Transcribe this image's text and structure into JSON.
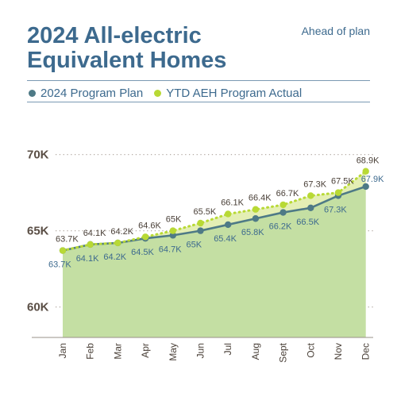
{
  "title": "2024 All-electric Equivalent Homes",
  "status": "Ahead of plan",
  "colors": {
    "plan": "#4e7a86",
    "actual": "#b8d935",
    "fill": "#c4dfa3",
    "ahead_fill": "#e4efb4",
    "text": "#3d6a8e"
  },
  "legend": [
    {
      "label": "2024 Program Plan",
      "color": "#4e7a86"
    },
    {
      "label": "YTD AEH Program Actual",
      "color": "#b8d935"
    }
  ],
  "chart_data": {
    "type": "line",
    "categories": [
      "Jan",
      "Feb",
      "Mar",
      "Apr",
      "May",
      "Jun",
      "Jul",
      "Aug",
      "Sept",
      "Oct",
      "Nov",
      "Dec"
    ],
    "series": [
      {
        "name": "2024 Program Plan",
        "values": [
          63.7,
          64.1,
          64.2,
          64.5,
          64.7,
          65.0,
          65.4,
          65.8,
          66.2,
          66.5,
          67.3,
          67.9
        ],
        "labels": [
          "63.7K",
          "64.1K",
          "64.2K",
          "64.5K",
          "64.7K",
          "65K",
          "65.4K",
          "65.8K",
          "66.2K",
          "66.5K",
          "67.3K",
          "67.9K"
        ]
      },
      {
        "name": "YTD AEH Program Actual",
        "values": [
          63.7,
          64.1,
          64.2,
          64.6,
          65.0,
          65.5,
          66.1,
          66.4,
          66.7,
          67.3,
          67.5,
          68.9
        ],
        "labels": [
          "63.7K",
          "64.1K",
          "64.2K",
          "64.6K",
          "65K",
          "65.5K",
          "66.1K",
          "66.4K",
          "66.7K",
          "67.3K",
          "67.5K",
          "68.9K"
        ]
      }
    ],
    "yticks": [
      60,
      65,
      70
    ],
    "ytick_labels": [
      "60K",
      "65K",
      "70K"
    ],
    "ylim": [
      58,
      71
    ],
    "grid": true,
    "legend_position": "top"
  }
}
